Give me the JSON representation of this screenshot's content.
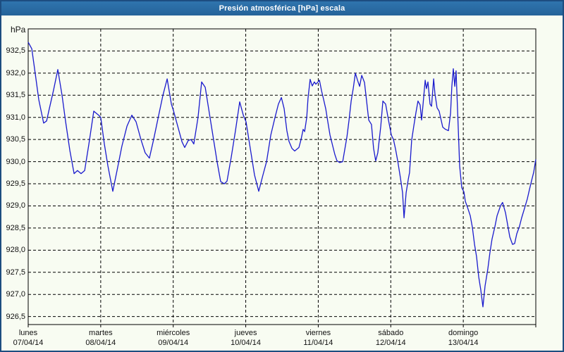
{
  "window": {
    "title": "Presión atmosférica [hPa] escala"
  },
  "colors": {
    "title_bar": "#2a6ca4",
    "title_text": "#ffffff",
    "window_border": "#1d4d80",
    "background": "#f8fcf2",
    "grid": "#000000",
    "plot_border": "#000000",
    "line": "#1a1acd",
    "label_text": "#111111"
  },
  "chart_data": {
    "type": "line",
    "title": "Presión atmosférica [hPa] escala",
    "y_unit_label": "hPa",
    "ylabel": "hPa",
    "xlabel": "",
    "grid": "dashed",
    "legend": "none",
    "ylim": [
      926.32,
      933.0
    ],
    "y_tick_labels": [
      "932,5",
      "932,0",
      "931,5",
      "931,0",
      "930,5",
      "930,0",
      "929,5",
      "929,0",
      "928,5",
      "928,0",
      "927,5",
      "927,0",
      "926,5"
    ],
    "y_tick_values": [
      932.5,
      932.0,
      931.5,
      931.0,
      930.5,
      930.0,
      929.5,
      929.0,
      928.5,
      928.0,
      927.5,
      927.0,
      926.5
    ],
    "x_days": [
      {
        "name": "lunes",
        "date": "07/04/14"
      },
      {
        "name": "martes",
        "date": "08/04/14"
      },
      {
        "name": "miércoles",
        "date": "09/04/14"
      },
      {
        "name": "jueves",
        "date": "10/04/14"
      },
      {
        "name": "viernes",
        "date": "11/04/14"
      },
      {
        "name": "sábado",
        "date": "12/04/14"
      },
      {
        "name": "domingo",
        "date": "13/04/14"
      }
    ],
    "x_range_hours": [
      0,
      168
    ],
    "hours_per_day": 24,
    "series": [
      {
        "name": "presión atmosférica",
        "color": "#1a1acd",
        "points": [
          [
            0,
            932.7
          ],
          [
            1.2,
            932.55
          ],
          [
            2.3,
            932.0
          ],
          [
            3.5,
            931.4
          ],
          [
            5.1,
            930.87
          ],
          [
            6.1,
            930.92
          ],
          [
            7,
            931.2
          ],
          [
            8.4,
            931.62
          ],
          [
            9.8,
            932.08
          ],
          [
            11.2,
            931.5
          ],
          [
            12.4,
            930.9
          ],
          [
            13.8,
            930.25
          ],
          [
            15.2,
            929.73
          ],
          [
            16.3,
            929.8
          ],
          [
            17.5,
            929.73
          ],
          [
            18.7,
            929.8
          ],
          [
            20.1,
            930.4
          ],
          [
            21.7,
            931.14
          ],
          [
            23.3,
            931.05
          ],
          [
            24,
            931.0
          ],
          [
            25.2,
            930.4
          ],
          [
            26.4,
            929.9
          ],
          [
            28,
            929.33
          ],
          [
            29.4,
            929.8
          ],
          [
            31,
            930.35
          ],
          [
            32.7,
            930.8
          ],
          [
            34.3,
            931.05
          ],
          [
            35.7,
            930.9
          ],
          [
            37.3,
            930.5
          ],
          [
            38.7,
            930.2
          ],
          [
            40.1,
            930.08
          ],
          [
            41.5,
            930.5
          ],
          [
            43.2,
            931.05
          ],
          [
            44.6,
            931.5
          ],
          [
            46,
            931.87
          ],
          [
            47.4,
            931.3
          ],
          [
            48.1,
            931.15
          ],
          [
            49.5,
            930.8
          ],
          [
            50.9,
            930.45
          ],
          [
            51.8,
            930.32
          ],
          [
            53,
            930.48
          ],
          [
            53.9,
            930.5
          ],
          [
            54.8,
            930.4
          ],
          [
            56.2,
            931.0
          ],
          [
            57.4,
            931.8
          ],
          [
            58.6,
            931.68
          ],
          [
            59.7,
            931.2
          ],
          [
            61.1,
            930.6
          ],
          [
            62.5,
            930.0
          ],
          [
            63.7,
            929.55
          ],
          [
            64.9,
            929.5
          ],
          [
            65.8,
            929.56
          ],
          [
            67.2,
            930.1
          ],
          [
            68.6,
            930.7
          ],
          [
            70,
            931.35
          ],
          [
            71.2,
            931.05
          ],
          [
            72.1,
            930.9
          ],
          [
            73.5,
            930.3
          ],
          [
            74.9,
            929.7
          ],
          [
            76.3,
            929.33
          ],
          [
            77.7,
            929.7
          ],
          [
            78.9,
            930.0
          ],
          [
            80.3,
            930.6
          ],
          [
            81.7,
            931.0
          ],
          [
            82.8,
            931.3
          ],
          [
            83.8,
            931.45
          ],
          [
            84.7,
            931.2
          ],
          [
            85.6,
            930.7
          ],
          [
            86.3,
            930.46
          ],
          [
            87.3,
            930.3
          ],
          [
            88.2,
            930.24
          ],
          [
            88.9,
            930.28
          ],
          [
            89.6,
            930.32
          ],
          [
            90.3,
            930.5
          ],
          [
            91,
            930.73
          ],
          [
            91.5,
            930.68
          ],
          [
            92.2,
            931.0
          ],
          [
            92.6,
            931.43
          ],
          [
            93.3,
            931.86
          ],
          [
            94,
            931.71
          ],
          [
            94.7,
            931.8
          ],
          [
            95.2,
            931.75
          ],
          [
            95.9,
            931.8
          ],
          [
            96.4,
            931.84
          ],
          [
            97.1,
            931.6
          ],
          [
            97.8,
            931.4
          ],
          [
            98.5,
            931.19
          ],
          [
            99.2,
            930.89
          ],
          [
            99.9,
            930.6
          ],
          [
            100.8,
            930.35
          ],
          [
            101.5,
            930.16
          ],
          [
            102.2,
            930.02
          ],
          [
            103.1,
            929.98
          ],
          [
            104.1,
            930.0
          ],
          [
            104.8,
            930.28
          ],
          [
            105.5,
            930.56
          ],
          [
            106.2,
            930.94
          ],
          [
            106.9,
            931.37
          ],
          [
            107.6,
            931.66
          ],
          [
            108.3,
            932.0
          ],
          [
            109,
            931.84
          ],
          [
            109.7,
            931.7
          ],
          [
            110.4,
            931.95
          ],
          [
            111.3,
            931.79
          ],
          [
            112,
            931.37
          ],
          [
            112.7,
            930.94
          ],
          [
            113.6,
            930.84
          ],
          [
            114.3,
            930.3
          ],
          [
            115,
            930.02
          ],
          [
            115.7,
            930.2
          ],
          [
            116.7,
            930.8
          ],
          [
            117.4,
            931.37
          ],
          [
            118.3,
            931.3
          ],
          [
            119.2,
            930.95
          ],
          [
            120.2,
            930.6
          ],
          [
            120.9,
            930.5
          ],
          [
            121.6,
            930.28
          ],
          [
            122.3,
            930.02
          ],
          [
            123.2,
            929.63
          ],
          [
            123.9,
            929.3
          ],
          [
            124.4,
            928.73
          ],
          [
            125.1,
            929.3
          ],
          [
            125.8,
            929.6
          ],
          [
            126.2,
            929.75
          ],
          [
            126.9,
            930.48
          ],
          [
            127.6,
            930.8
          ],
          [
            128.3,
            931.1
          ],
          [
            129,
            931.37
          ],
          [
            129.7,
            931.28
          ],
          [
            130.2,
            930.94
          ],
          [
            130.7,
            931.3
          ],
          [
            131.4,
            931.84
          ],
          [
            131.8,
            931.65
          ],
          [
            132.3,
            931.8
          ],
          [
            133,
            931.3
          ],
          [
            133.5,
            931.25
          ],
          [
            134.2,
            931.87
          ],
          [
            134.6,
            931.54
          ],
          [
            135.3,
            931.22
          ],
          [
            136,
            931.14
          ],
          [
            137.2,
            930.78
          ],
          [
            138.1,
            930.73
          ],
          [
            139.1,
            930.7
          ],
          [
            139.8,
            931.1
          ],
          [
            140.2,
            931.7
          ],
          [
            140.7,
            932.1
          ],
          [
            141.2,
            931.7
          ],
          [
            141.6,
            932.05
          ],
          [
            142.3,
            930.8
          ],
          [
            142.8,
            929.9
          ],
          [
            143.5,
            929.41
          ],
          [
            144.2,
            929.32
          ],
          [
            144.7,
            929.1
          ],
          [
            145.4,
            928.97
          ],
          [
            146.3,
            928.78
          ],
          [
            147,
            928.52
          ],
          [
            147.7,
            928.14
          ],
          [
            148.4,
            927.85
          ],
          [
            149.1,
            927.4
          ],
          [
            149.8,
            927.1
          ],
          [
            150.5,
            926.72
          ],
          [
            151.2,
            927.19
          ],
          [
            152.1,
            927.57
          ],
          [
            152.8,
            927.94
          ],
          [
            153.5,
            928.25
          ],
          [
            154.5,
            928.54
          ],
          [
            155.2,
            928.78
          ],
          [
            156.3,
            929.0
          ],
          [
            157,
            929.08
          ],
          [
            158,
            928.84
          ],
          [
            158.7,
            928.57
          ],
          [
            159.4,
            928.3
          ],
          [
            160.3,
            928.13
          ],
          [
            161,
            928.15
          ],
          [
            161.7,
            928.37
          ],
          [
            162.6,
            928.54
          ],
          [
            163.3,
            928.73
          ],
          [
            164.3,
            928.95
          ],
          [
            165.2,
            929.16
          ],
          [
            165.9,
            929.37
          ],
          [
            166.6,
            929.57
          ],
          [
            167.3,
            929.76
          ],
          [
            168,
            930.05
          ]
        ]
      }
    ]
  }
}
